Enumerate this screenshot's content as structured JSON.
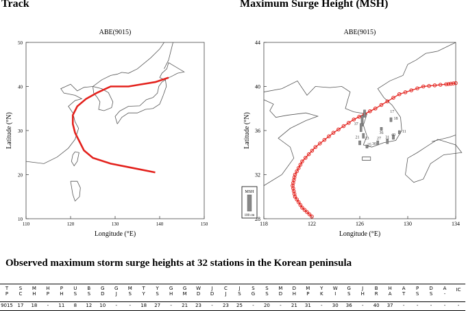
{
  "headings": {
    "left": "Track",
    "right": "Maximum Surge Height (MSH)"
  },
  "chart_data": [
    {
      "type": "line",
      "title": "ABE(9015)",
      "xlabel": "Longitude (°E)",
      "ylabel": "Latitude (°N)",
      "xlim": [
        110,
        150
      ],
      "ylim": [
        10,
        50
      ],
      "xticks": [
        110,
        120,
        130,
        140,
        150
      ],
      "yticks": [
        10,
        20,
        30,
        40,
        50
      ],
      "series": [
        {
          "color": "#e3211c",
          "x": [
            139,
            134,
            129,
            125,
            123,
            122,
            121,
            120.5,
            120.5,
            121.5,
            123.5,
            126,
            129,
            133,
            136,
            139,
            142
          ],
          "y": [
            20.5,
            21.5,
            22.5,
            23.8,
            25.5,
            27.5,
            29.5,
            31.5,
            33.5,
            35.5,
            37.2,
            38.6,
            40,
            40,
            40.5,
            41,
            42
          ]
        }
      ]
    },
    {
      "type": "line",
      "title": "ABE(9015)",
      "xlabel": "Longitude (°E)",
      "ylabel": "Latitude (°N)",
      "xlim": [
        118,
        134
      ],
      "ylim": [
        28,
        44
      ],
      "xticks": [
        118,
        122,
        126,
        130,
        134
      ],
      "yticks": [
        28,
        32,
        36,
        40,
        44
      ],
      "legend_label": "MSH",
      "legend_unit": "100 cm",
      "station_labels": [
        "17",
        "18",
        "36",
        "37",
        "11",
        "21",
        "23",
        "27",
        "31",
        "40",
        "30",
        "25"
      ],
      "series": [
        {
          "color": "#e3211c",
          "marker": "circle",
          "x": [
            122,
            121.2,
            120.6,
            120.4,
            120.6,
            121.2,
            122.3,
            123.8,
            125.5,
            127.3,
            129.3,
            131.3,
            133.2,
            134
          ],
          "y": [
            28.2,
            29,
            30,
            31,
            32,
            33.2,
            34.5,
            35.8,
            37,
            38,
            39.3,
            40,
            40.2,
            40.3
          ]
        }
      ]
    }
  ],
  "caption": "Observed maximum storm surge heights at 32 stations in the Korean peninsula",
  "table": {
    "headers": [
      [
        "T",
        "P"
      ],
      [
        "S",
        "C"
      ],
      [
        "M",
        "H"
      ],
      [
        "H",
        "P"
      ],
      [
        "P",
        "H"
      ],
      [
        "U",
        "S"
      ],
      [
        "B",
        "S"
      ],
      [
        "G",
        "D"
      ],
      [
        "G",
        "J"
      ],
      [
        "M",
        "S"
      ],
      [
        "T",
        "Y"
      ],
      [
        "Y",
        "S"
      ],
      [
        "G",
        "H"
      ],
      [
        "G",
        "M"
      ],
      [
        "W",
        "D"
      ],
      [
        "J",
        "D"
      ],
      [
        "C",
        "J"
      ],
      [
        "J",
        "S"
      ],
      [
        "S",
        "G"
      ],
      [
        "S",
        "S"
      ],
      [
        "M",
        "D"
      ],
      [
        "D",
        "H"
      ],
      [
        "M",
        "P"
      ],
      [
        "Y",
        "K"
      ],
      [
        "W",
        "I"
      ],
      [
        "G",
        "S"
      ],
      [
        "J",
        "H"
      ],
      [
        "B",
        "R"
      ],
      [
        "H",
        "A"
      ],
      [
        "A",
        "T"
      ],
      [
        "P",
        "S"
      ],
      [
        "D",
        "S"
      ],
      [
        "A",
        "-"
      ],
      [
        "IC",
        ""
      ]
    ],
    "values": [
      "9015",
      "17",
      "18",
      "-",
      "11",
      "8",
      "12",
      "10",
      "-",
      "-",
      "18",
      "27",
      "-",
      "21",
      "23",
      "-",
      "23",
      "25",
      "-",
      "20",
      "-",
      "21",
      "31",
      "-",
      "30",
      "36",
      "-",
      "40",
      "37",
      "-",
      "-",
      "-",
      "-",
      "-"
    ]
  }
}
